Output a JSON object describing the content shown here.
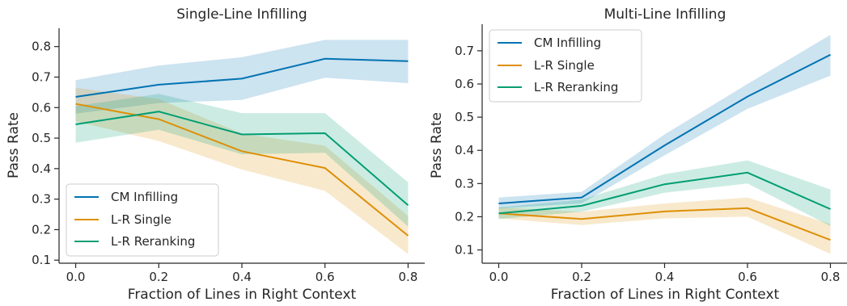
{
  "chart_data": [
    {
      "type": "line",
      "title": "Single-Line Infilling",
      "xlabel": "Fraction of Lines in Right Context",
      "ylabel": "Pass Rate",
      "x": [
        0.0,
        0.2,
        0.4,
        0.6,
        0.8
      ],
      "x_ticks": [
        "0.0",
        "0.2",
        "0.4",
        "0.6",
        "0.8"
      ],
      "y_ticks": [
        "0.1",
        "0.2",
        "0.3",
        "0.4",
        "0.5",
        "0.6",
        "0.7",
        "0.8"
      ],
      "xlim": [
        -0.04,
        0.84
      ],
      "ylim": [
        0.09,
        0.86
      ],
      "grid": false,
      "legend_position": "lower-left",
      "series": [
        {
          "name": "CM Infilling",
          "color": "#0173b2",
          "values": [
            0.635,
            0.675,
            0.695,
            0.76,
            0.752
          ],
          "lower": [
            0.58,
            0.615,
            0.625,
            0.698,
            0.68
          ],
          "upper": [
            0.69,
            0.738,
            0.765,
            0.822,
            0.822
          ]
        },
        {
          "name": "L-R Single",
          "color": "#de8f05",
          "values": [
            0.612,
            0.562,
            0.457,
            0.402,
            0.18
          ],
          "lower": [
            0.555,
            0.49,
            0.397,
            0.327,
            0.12
          ],
          "upper": [
            0.665,
            0.628,
            0.515,
            0.475,
            0.245
          ]
        },
        {
          "name": "L-R Reranking",
          "color": "#029e73",
          "values": [
            0.545,
            0.587,
            0.512,
            0.516,
            0.28
          ],
          "lower": [
            0.485,
            0.527,
            0.447,
            0.452,
            0.21
          ],
          "upper": [
            0.605,
            0.645,
            0.582,
            0.582,
            0.355
          ]
        }
      ]
    },
    {
      "type": "line",
      "title": "Multi-Line Infilling",
      "xlabel": "Fraction of Lines in Right Context",
      "ylabel": "Pass Rate",
      "x": [
        0.0,
        0.2,
        0.4,
        0.6,
        0.8
      ],
      "x_ticks": [
        "0.0",
        "0.2",
        "0.4",
        "0.6",
        "0.8"
      ],
      "y_ticks": [
        "0.1",
        "0.2",
        "0.3",
        "0.4",
        "0.5",
        "0.6",
        "0.7"
      ],
      "xlim": [
        -0.04,
        0.84
      ],
      "ylim": [
        0.06,
        0.78
      ],
      "grid": false,
      "legend_position": "top-left",
      "series": [
        {
          "name": "CM Infilling",
          "color": "#0173b2",
          "values": [
            0.24,
            0.258,
            0.415,
            0.562,
            0.688
          ],
          "lower": [
            0.225,
            0.24,
            0.385,
            0.525,
            0.625
          ],
          "upper": [
            0.258,
            0.275,
            0.448,
            0.6,
            0.748
          ]
        },
        {
          "name": "L-R Single",
          "color": "#de8f05",
          "values": [
            0.21,
            0.193,
            0.216,
            0.226,
            0.13
          ],
          "lower": [
            0.195,
            0.175,
            0.195,
            0.2,
            0.088
          ],
          "upper": [
            0.228,
            0.215,
            0.24,
            0.258,
            0.178
          ]
        },
        {
          "name": "L-R Reranking",
          "color": "#029e73",
          "values": [
            0.21,
            0.233,
            0.298,
            0.333,
            0.223
          ],
          "lower": [
            0.193,
            0.215,
            0.272,
            0.3,
            0.172
          ],
          "upper": [
            0.228,
            0.252,
            0.328,
            0.37,
            0.282
          ]
        }
      ]
    }
  ]
}
